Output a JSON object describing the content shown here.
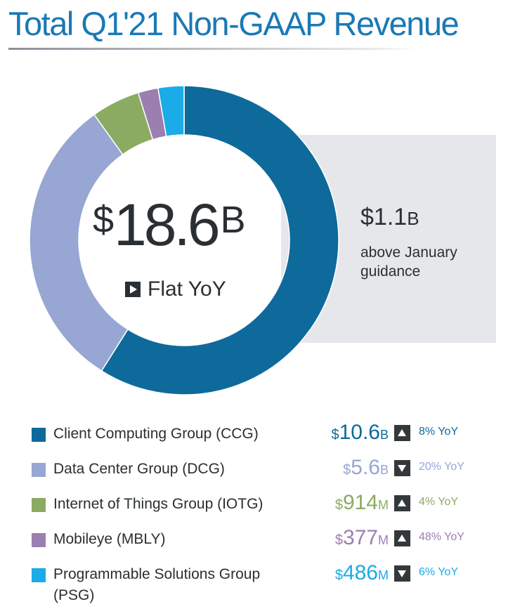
{
  "chart_data": {
    "type": "pie",
    "title": "Total Q1'21 Non-GAAP Revenue",
    "center_value": "$18.6B",
    "center_value_parts": {
      "currency": "$",
      "number": "18.6",
      "unit": "B"
    },
    "center_change": "Flat YoY",
    "callout": {
      "currency": "$",
      "number": "1.1",
      "unit": "B",
      "text": "above January guidance"
    },
    "series": [
      {
        "name": "Client Computing Group (CCG)",
        "value": 10.6,
        "display": {
          "currency": "$",
          "number": "10.6",
          "unit": "B"
        },
        "direction": "up",
        "change": "8% YoY",
        "color": "#0e6a9a"
      },
      {
        "name": "Data Center Group (DCG)",
        "value": 5.6,
        "display": {
          "currency": "$",
          "number": "5.6",
          "unit": "B"
        },
        "direction": "down",
        "change": "20% YoY",
        "color": "#97a6d2"
      },
      {
        "name": "Internet of Things Group (IOTG)",
        "value": 0.914,
        "display": {
          "currency": "$",
          "number": "914",
          "unit": "M"
        },
        "direction": "up",
        "change": "4% YoY",
        "color": "#8bab63"
      },
      {
        "name": "Mobileye (MBLY)",
        "value": 0.377,
        "display": {
          "currency": "$",
          "number": "377",
          "unit": "M"
        },
        "direction": "up",
        "change": "48% YoY",
        "color": "#9b7fb1"
      },
      {
        "name": "Programmable Solutions Group (PSG)",
        "value": 0.486,
        "display": {
          "currency": "$",
          "number": "486",
          "unit": "M"
        },
        "direction": "down",
        "change": "6% YoY",
        "color": "#1aabe8"
      }
    ],
    "legend_placement": "bottom"
  }
}
